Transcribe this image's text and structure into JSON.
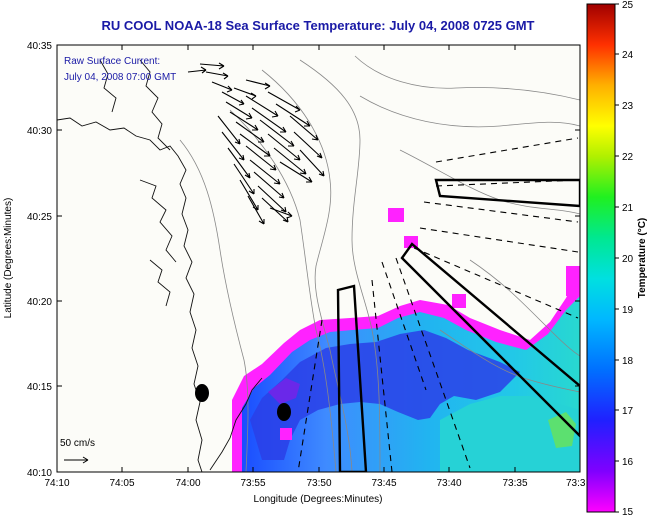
{
  "chart_data": {
    "type": "heatmap",
    "title": "RU COOL  NOAA-18  Sea Surface Temperature:  July 04, 2008 0725 GMT",
    "annotation_lines": [
      "Raw Surface Current:",
      "July 04, 2008 07:00 GMT"
    ],
    "xlabel": "Longitude (Degrees:Minutes)",
    "ylabel": "Latitude (Degrees:Minutes)",
    "x_ticks": [
      "74:10",
      "74:05",
      "74:00",
      "73:55",
      "73:50",
      "73:45",
      "73:40",
      "73:35",
      "73:3"
    ],
    "y_ticks": [
      "40:35",
      "40:30",
      "40:25",
      "40:20",
      "40:15",
      "40:10"
    ],
    "xlim_minutes_west": [
      70,
      30
    ],
    "ylim_minutes_north": [
      10,
      35
    ],
    "scale_label": "50 cm/s",
    "colorbar": {
      "label": "Temperature (°C)",
      "ticks": [
        "25",
        "24",
        "23",
        "22",
        "21",
        "20",
        "19",
        "18",
        "17",
        "16",
        "15"
      ],
      "range": [
        15,
        25
      ]
    },
    "colors": {
      "title": "#1a1aa6",
      "land": "#ffffff",
      "ocean_nodata": "#fcfcf8",
      "cold": "#ff00ff",
      "warm": "#00d2c4"
    }
  }
}
